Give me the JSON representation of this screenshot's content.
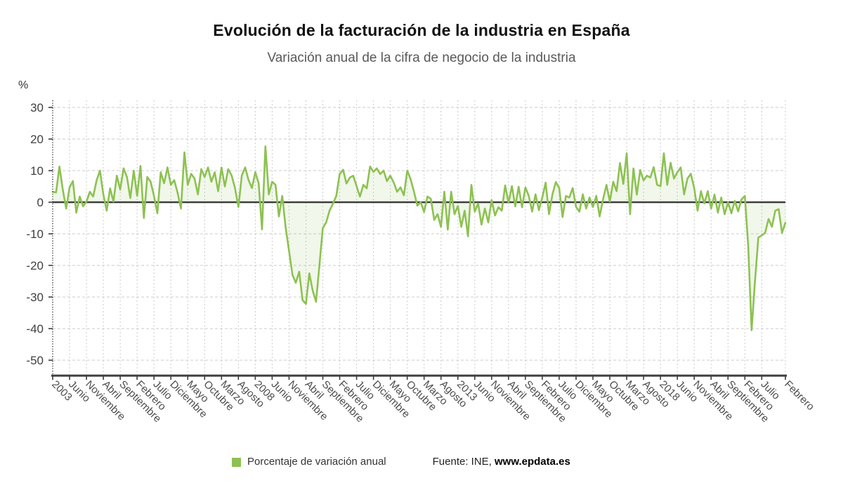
{
  "header": {
    "title": "Evolución de la facturación de la industria en España",
    "subtitle": "Variación anual de la cifra de negocio de la industria"
  },
  "chart_data": {
    "type": "line",
    "title": "Evolución de la facturación de la industria en España",
    "subtitle": "Variación anual de la cifra de negocio de la industria",
    "ylabel": "%",
    "ylim": [
      -55,
      33
    ],
    "y_ticks": [
      30,
      20,
      10,
      0,
      -10,
      -20,
      -30,
      -40,
      -50
    ],
    "grid": true,
    "legend_position": "bottom",
    "x_start": "Enero 2003",
    "x_end": "Febrero 2021",
    "x_tick_labels": [
      {
        "m": 0,
        "label": "2003"
      },
      {
        "m": 5,
        "label": "Junio"
      },
      {
        "m": 10,
        "label": "Noviembre"
      },
      {
        "m": 15,
        "label": "Abril"
      },
      {
        "m": 20,
        "label": "Septiembre"
      },
      {
        "m": 25,
        "label": "Febrero"
      },
      {
        "m": 30,
        "label": "Julio"
      },
      {
        "m": 35,
        "label": "Diciembre"
      },
      {
        "m": 40,
        "label": "Mayo"
      },
      {
        "m": 45,
        "label": "Octubre"
      },
      {
        "m": 50,
        "label": "Marzo"
      },
      {
        "m": 55,
        "label": "Agosto"
      },
      {
        "m": 60,
        "label": "2008"
      },
      {
        "m": 65,
        "label": "Junio"
      },
      {
        "m": 70,
        "label": "Noviembre"
      },
      {
        "m": 75,
        "label": "Abril"
      },
      {
        "m": 80,
        "label": "Septiembre"
      },
      {
        "m": 85,
        "label": "Febrero"
      },
      {
        "m": 90,
        "label": "Julio"
      },
      {
        "m": 95,
        "label": "Diciembre"
      },
      {
        "m": 100,
        "label": "Mayo"
      },
      {
        "m": 105,
        "label": "Octubre"
      },
      {
        "m": 110,
        "label": "Marzo"
      },
      {
        "m": 115,
        "label": "Agosto"
      },
      {
        "m": 120,
        "label": "2013"
      },
      {
        "m": 125,
        "label": "Junio"
      },
      {
        "m": 130,
        "label": "Noviembre"
      },
      {
        "m": 135,
        "label": "Abril"
      },
      {
        "m": 140,
        "label": "Septiembre"
      },
      {
        "m": 145,
        "label": "Febrero"
      },
      {
        "m": 150,
        "label": "Julio"
      },
      {
        "m": 155,
        "label": "Diciembre"
      },
      {
        "m": 160,
        "label": "Mayo"
      },
      {
        "m": 165,
        "label": "Octubre"
      },
      {
        "m": 170,
        "label": "Marzo"
      },
      {
        "m": 175,
        "label": "Agosto"
      },
      {
        "m": 180,
        "label": "2018"
      },
      {
        "m": 185,
        "label": "Junio"
      },
      {
        "m": 190,
        "label": "Noviembre"
      },
      {
        "m": 195,
        "label": "Abril"
      },
      {
        "m": 200,
        "label": "Septiembre"
      },
      {
        "m": 205,
        "label": "Febrero"
      },
      {
        "m": 210,
        "label": "Julio"
      },
      {
        "m": 217,
        "label": "Febrero"
      }
    ],
    "series": [
      {
        "name": "Porcentaje de variación anual",
        "color": "#8dc152",
        "values": [
          3.3,
          3.1,
          11.3,
          4.0,
          -2.0,
          4.7,
          6.7,
          -3.3,
          1.8,
          -1.3,
          0.2,
          3.3,
          1.8,
          6.9,
          10.0,
          2.5,
          -2.7,
          4.4,
          0.2,
          8.4,
          4.0,
          10.7,
          8.0,
          1.3,
          10.0,
          2.0,
          11.5,
          -5.0,
          8.0,
          6.5,
          2.0,
          -3.5,
          9.5,
          6.0,
          11.0,
          5.5,
          7.0,
          3.0,
          -2.0,
          15.8,
          5.5,
          9.0,
          7.5,
          2.5,
          10.5,
          8.0,
          11.0,
          6.5,
          9.5,
          3.5,
          11.0,
          5.0,
          10.5,
          8.5,
          4.5,
          -1.5,
          8.5,
          11.0,
          7.0,
          4.5,
          9.5,
          6.0,
          -8.6,
          17.7,
          2.5,
          6.5,
          5.5,
          -4.5,
          2.0,
          -8.0,
          -15.5,
          -23.0,
          -25.5,
          -22.0,
          -31.0,
          -32.2,
          -22.5,
          -28.0,
          -31.5,
          -20.0,
          -8.2,
          -6.4,
          -2.7,
          -0.5,
          2.0,
          8.9,
          10.3,
          5.9,
          7.8,
          8.4,
          5.1,
          1.8,
          5.5,
          4.4,
          11.3,
          9.6,
          10.7,
          8.9,
          10.0,
          6.7,
          8.4,
          6.2,
          3.3,
          4.7,
          2.2,
          10.0,
          7.3,
          3.3,
          -1.1,
          0.0,
          -3.1,
          1.8,
          1.1,
          -5.6,
          -3.8,
          -7.8,
          3.3,
          -8.7,
          3.3,
          -3.8,
          -1.2,
          -7.8,
          -2.7,
          -10.8,
          5.5,
          -3.0,
          -0.4,
          -7.1,
          -2.0,
          -6.4,
          0.7,
          -4.2,
          -1.6,
          -2.7,
          5.3,
          -0.2,
          5.1,
          -1.3,
          4.9,
          -1.6,
          4.7,
          2.0,
          -3.0,
          2.5,
          -2.5,
          1.5,
          6.2,
          -3.8,
          2.5,
          6.4,
          4.5,
          -4.7,
          2.0,
          1.5,
          4.5,
          -1.5,
          -3.0,
          2.5,
          -2.0,
          1.5,
          -1.5,
          2.0,
          -4.5,
          1.0,
          5.5,
          0.2,
          6.5,
          3.5,
          12.4,
          5.8,
          15.5,
          -3.8,
          10.7,
          2.4,
          10.2,
          6.9,
          8.4,
          7.8,
          11.1,
          5.5,
          5.1,
          15.5,
          5.5,
          12.5,
          7.5,
          9.5,
          11.0,
          2.5,
          7.5,
          9.0,
          4.5,
          -2.7,
          3.5,
          -0.4,
          3.5,
          -2.0,
          2.4,
          -3.3,
          1.5,
          -3.8,
          0.0,
          -3.5,
          0.4,
          -2.9,
          0.9,
          2.0,
          -14.0,
          -40.5,
          -25.0,
          -11.2,
          -10.5,
          -9.7,
          -5.3,
          -7.8,
          -2.7,
          -2.2,
          -9.7,
          -6.5
        ]
      }
    ]
  },
  "legend": {
    "label": "Porcentaje de variación anual",
    "swatch_color": "#8dc152"
  },
  "footer": {
    "source_prefix": "Fuente: INE, ",
    "source_link": "www.epdata.es"
  },
  "colors": {
    "line": "#8dc152",
    "fill": "rgba(141,193,82,0.12)",
    "grid": "#cbcbcb",
    "axis": "#3d3d3d",
    "tick_text": "#4d4d4d"
  }
}
